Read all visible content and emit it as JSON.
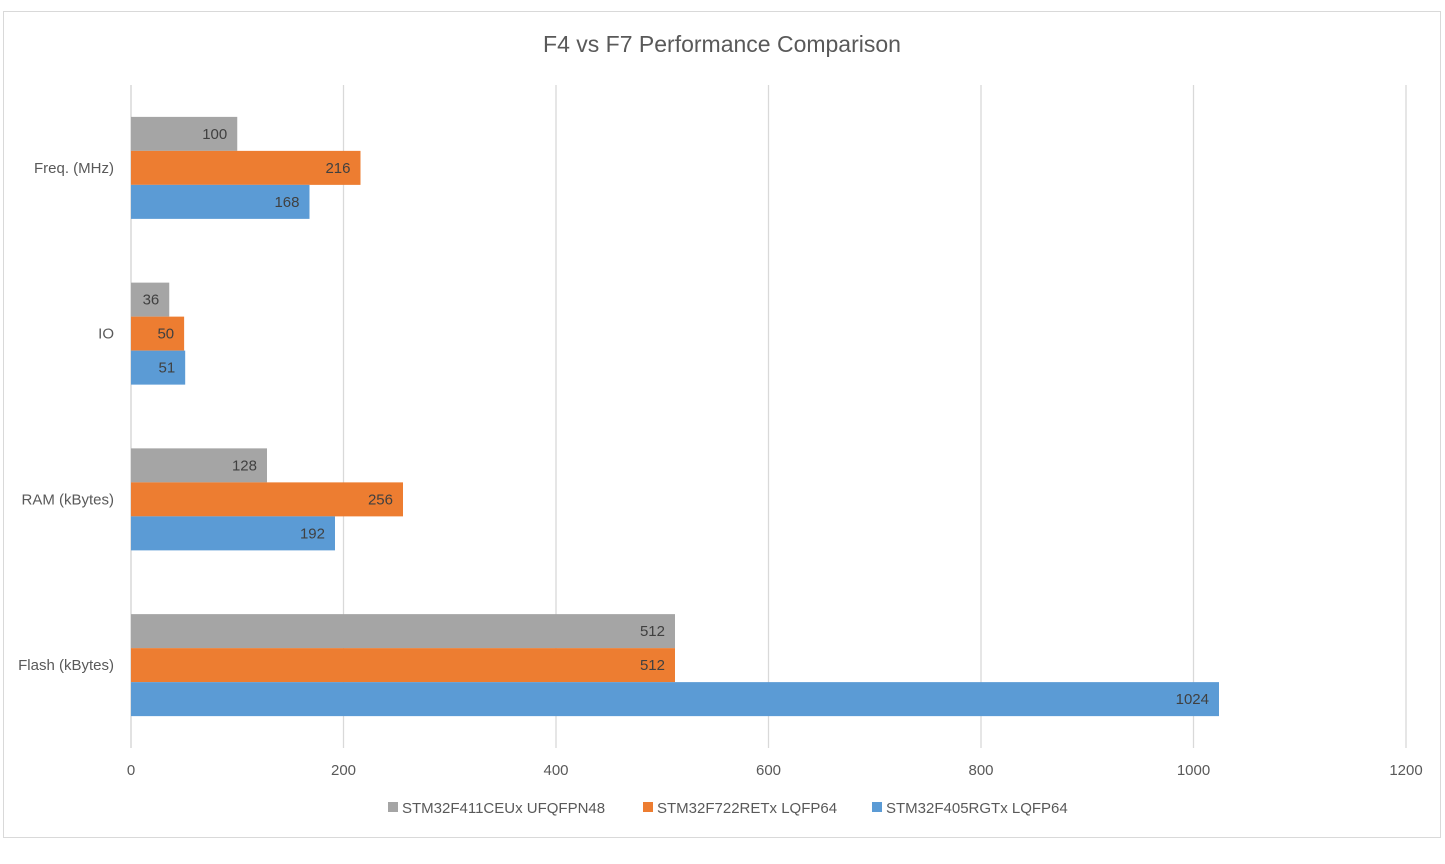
{
  "chart_data": {
    "type": "bar",
    "orientation": "horizontal",
    "title": "F4 vs F7 Performance Comparison",
    "xlabel": "",
    "ylabel": "",
    "xlim": [
      0,
      1200
    ],
    "xticks": [
      0,
      200,
      400,
      600,
      800,
      1000,
      1200
    ],
    "grid": true,
    "legend_position": "bottom",
    "categories": [
      "Freq. (MHz)",
      "IO",
      "RAM (kBytes)",
      "Flash (kBytes)"
    ],
    "series": [
      {
        "name": "STM32F411CEUx UFQFPN48",
        "color": "#a5a5a5",
        "values": [
          100,
          36,
          128,
          512
        ]
      },
      {
        "name": "STM32F722RETx LQFP64",
        "color": "#ed7d31",
        "values": [
          216,
          50,
          256,
          512
        ]
      },
      {
        "name": "STM32F405RGTx LQFP64",
        "color": "#5b9bd5",
        "values": [
          168,
          51,
          192,
          1024
        ]
      }
    ]
  }
}
